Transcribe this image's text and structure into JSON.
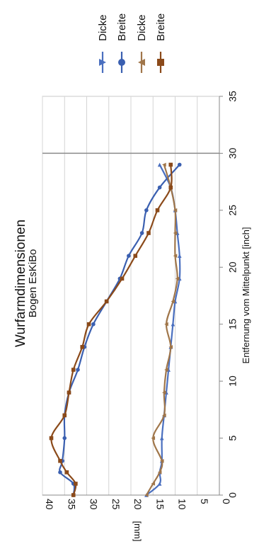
{
  "chart_data": {
    "type": "line",
    "title": "Wurfarmdimensionen",
    "subtitle": "Bogen EsKiBo",
    "xlabel": "Entfernung vom Mittelpunkt [inch]",
    "ylabel": "[mm]",
    "xlim": [
      0,
      35
    ],
    "ylim": [
      0,
      40
    ],
    "x_ticks": [
      "0",
      "5",
      "10",
      "15",
      "20",
      "25",
      "30",
      "35"
    ],
    "y_ticks": [
      "0",
      "5",
      "10",
      "15",
      "20",
      "25",
      "30",
      "35",
      "40"
    ],
    "grid": true,
    "reference_line_x": 30,
    "orientation": "rotated-90-ccw",
    "legend_position": "top",
    "series": [
      {
        "name": "Dicke",
        "color": "#4a6fbf",
        "marker": "triangle",
        "x": [
          0,
          1,
          2,
          3,
          5,
          7,
          9,
          11,
          13,
          15,
          17,
          19,
          21,
          23,
          25,
          27,
          29
        ],
        "y": [
          16.5,
          13.5,
          13.5,
          13,
          13,
          12.5,
          12,
          11.5,
          11,
          10.5,
          10,
          9,
          9,
          9.5,
          10,
          11,
          13.5
        ]
      },
      {
        "name": "Breite",
        "color": "#3a5fb0",
        "marker": "circle",
        "x": [
          0,
          1,
          2,
          3,
          5,
          7,
          9,
          11,
          13,
          15,
          17,
          19,
          21,
          23,
          25,
          27,
          29
        ],
        "y": [
          33,
          33,
          36,
          35.5,
          35,
          35,
          34,
          32,
          30.5,
          28.5,
          25.5,
          22.5,
          20.5,
          17.5,
          16.5,
          13.5,
          9
        ]
      },
      {
        "name": "Dicke",
        "color": "#a0764a",
        "marker": "triangle-left",
        "x": [
          0,
          1,
          2,
          3,
          5,
          7,
          9,
          11,
          13,
          15,
          17,
          19,
          21,
          23,
          25,
          27,
          29
        ],
        "y": [
          16.5,
          15,
          13.5,
          13,
          15,
          12.5,
          12.5,
          12,
          11,
          12,
          10.5,
          9.5,
          10,
          10,
          10,
          11,
          12.5
        ]
      },
      {
        "name": "Breite",
        "color": "#8b4a1a",
        "marker": "square",
        "x": [
          0,
          1,
          2,
          3,
          5,
          7,
          9,
          11,
          13,
          15,
          17,
          19,
          21,
          23,
          25,
          27,
          29
        ],
        "y": [
          33,
          32.5,
          34.5,
          36,
          38,
          35,
          34,
          33,
          31,
          29.5,
          25.5,
          22,
          19,
          16,
          14,
          11,
          11
        ]
      }
    ]
  }
}
